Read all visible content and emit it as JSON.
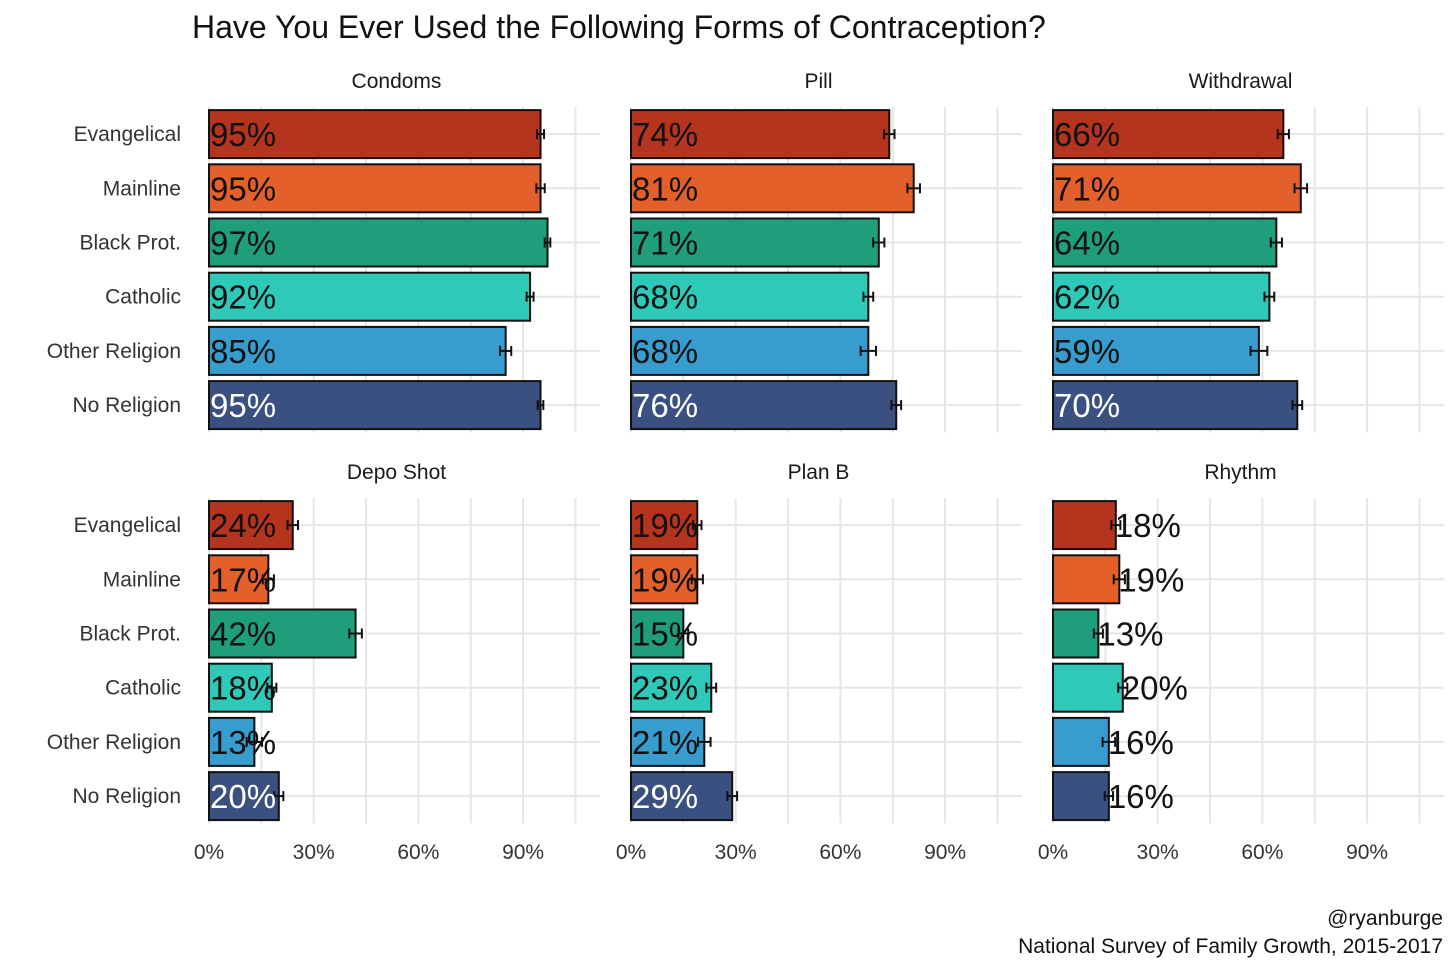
{
  "chart_data": {
    "type": "bar",
    "orientation": "horizontal",
    "title": "Have You Ever Used the Following Forms of Contraception?",
    "categories": [
      "Evangelical",
      "Mainline",
      "Black Prot.",
      "Catholic",
      "Other Religion",
      "No Religion"
    ],
    "colors": [
      "#b5341e",
      "#e4602b",
      "#1f9e7c",
      "#2ec9b9",
      "#379dcf",
      "#3a5080"
    ],
    "label_colors": [
      "#111111",
      "#111111",
      "#111111",
      "#111111",
      "#111111",
      "#ffffff"
    ],
    "x_ticks": [
      0,
      30,
      60,
      90
    ],
    "x_tick_labels": [
      "0%",
      "30%",
      "60%",
      "90%"
    ],
    "xlim": [
      0,
      112
    ],
    "panels": [
      {
        "name": "Condoms",
        "values": [
          95,
          95,
          97,
          92,
          85,
          95
        ],
        "labels": [
          "95%",
          "95%",
          "97%",
          "92%",
          "85%",
          "95%"
        ],
        "errors": [
          1.0,
          1.2,
          0.8,
          1.0,
          1.6,
          0.8
        ],
        "label_position": "inside"
      },
      {
        "name": "Pill",
        "values": [
          74,
          81,
          71,
          68,
          68,
          76
        ],
        "labels": [
          "74%",
          "81%",
          "71%",
          "68%",
          "68%",
          "76%"
        ],
        "errors": [
          1.5,
          1.8,
          1.6,
          1.4,
          2.2,
          1.4
        ],
        "label_position": "inside"
      },
      {
        "name": "Withdrawal",
        "values": [
          66,
          71,
          64,
          62,
          59,
          70
        ],
        "labels": [
          "66%",
          "71%",
          "64%",
          "62%",
          "59%",
          "70%"
        ],
        "errors": [
          1.6,
          1.8,
          1.6,
          1.4,
          2.4,
          1.4
        ],
        "label_position": "inside"
      },
      {
        "name": "Depo Shot",
        "values": [
          24,
          17,
          42,
          18,
          13,
          20
        ],
        "labels": [
          "24%",
          "17%",
          "42%",
          "18%",
          "13%",
          "20%"
        ],
        "errors": [
          1.5,
          1.6,
          1.8,
          1.3,
          2.2,
          1.3
        ],
        "label_position": "inside"
      },
      {
        "name": "Plan B",
        "values": [
          19,
          19,
          15,
          23,
          21,
          29
        ],
        "labels": [
          "19%",
          "19%",
          "15%",
          "23%",
          "21%",
          "29%"
        ],
        "errors": [
          1.2,
          1.6,
          1.4,
          1.4,
          1.8,
          1.4
        ],
        "label_position": "inside"
      },
      {
        "name": "Rhythm",
        "values": [
          18,
          19,
          13,
          20,
          16,
          16
        ],
        "labels": [
          "18%",
          "19%",
          "13%",
          "20%",
          "16%",
          "16%"
        ],
        "errors": [
          1.3,
          1.6,
          1.3,
          1.3,
          1.8,
          1.2
        ],
        "label_position": "outside"
      }
    ]
  },
  "caption": {
    "handle": "@ryanburge",
    "source": "National Survey of Family Growth, 2015-2017"
  }
}
